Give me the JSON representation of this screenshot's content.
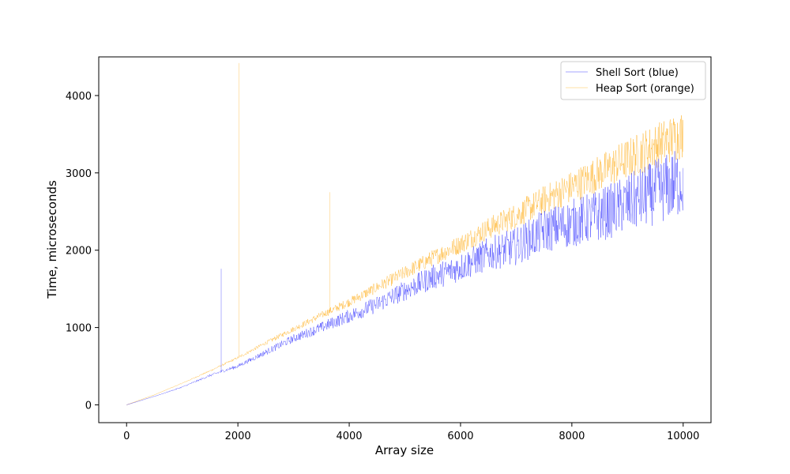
{
  "chart_data": {
    "type": "line",
    "title": "",
    "xlabel": "Array size",
    "ylabel": "Time, microseconds",
    "xlim": [
      -500,
      10500
    ],
    "ylim": [
      -230,
      4500
    ],
    "x_ticks": [
      0,
      2000,
      4000,
      6000,
      8000,
      10000
    ],
    "x_tick_labels": [
      "0",
      "2000",
      "4000",
      "6000",
      "8000",
      "10000"
    ],
    "y_ticks": [
      0,
      1000,
      2000,
      3000,
      4000
    ],
    "y_tick_labels": [
      "0",
      "1000",
      "2000",
      "3000",
      "4000"
    ],
    "grid": false,
    "legend_position": "top-right",
    "series": [
      {
        "name": "Shell Sort (blue)",
        "color": "#0000ff",
        "x": [
          0,
          500,
          1000,
          1500,
          1700,
          2000,
          2500,
          3000,
          3500,
          4000,
          4500,
          5000,
          5500,
          6000,
          6500,
          7000,
          7500,
          8000,
          8500,
          9000,
          9500,
          10000
        ],
        "values": [
          0,
          110,
          230,
          380,
          430,
          500,
          680,
          860,
          1000,
          1150,
          1300,
          1480,
          1650,
          1780,
          1950,
          2050,
          2250,
          2350,
          2450,
          2600,
          2750,
          2900
        ],
        "spikes": [
          {
            "x": 1700,
            "y": 1760
          }
        ]
      },
      {
        "name": "Heap Sort (orange)",
        "color": "#ffa500",
        "x": [
          0,
          500,
          1000,
          1500,
          2000,
          2500,
          3000,
          3500,
          4000,
          4500,
          5000,
          5500,
          6000,
          6500,
          7000,
          7500,
          8000,
          8500,
          9000,
          9500,
          10000
        ],
        "values": [
          0,
          130,
          280,
          440,
          610,
          800,
          980,
          1160,
          1330,
          1520,
          1710,
          1900,
          2080,
          2280,
          2450,
          2650,
          2820,
          3000,
          3180,
          3350,
          3500
        ],
        "spikes": [
          {
            "x": 2020,
            "y": 4420
          },
          {
            "x": 3650,
            "y": 2750
          }
        ]
      }
    ]
  }
}
